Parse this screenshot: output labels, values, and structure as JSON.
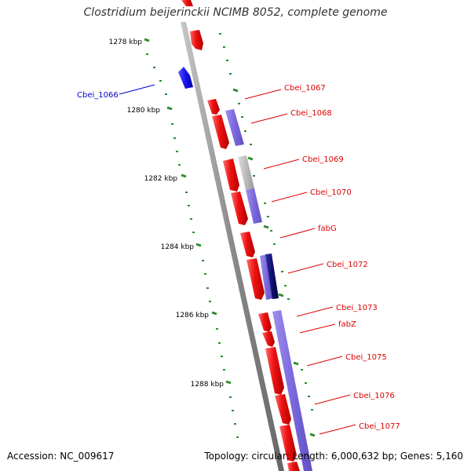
{
  "title": "Clostridium beijerinckii NCIMB 8052, complete genome",
  "accession": "Accession: NC_009617",
  "topology": "Topology: circular; Length: 6,000,632 bp; Genes: 5,160",
  "colors": {
    "cds_forward": "#ee1111",
    "cds_reverse": "#1a1aee",
    "backbone": "#8a8a8a",
    "feature_periwinkle": "#7b68dd",
    "feature_grey": "#bbbbbb",
    "feature_navy": "#101070",
    "tick": "#2e8b2e",
    "label_forward": "#dd0000",
    "label_reverse": "#0000cc"
  },
  "kbp_ticks": [
    "1278 kbp",
    "1280 kbp",
    "1282 kbp",
    "1284 kbp",
    "1286 kbp",
    "1288 kbp"
  ],
  "gene_labels": [
    {
      "text": "Cbei_1066",
      "strand": "reverse"
    },
    {
      "text": "Cbei_1067",
      "strand": "forward"
    },
    {
      "text": "Cbei_1068",
      "strand": "forward"
    },
    {
      "text": "Cbei_1069",
      "strand": "forward"
    },
    {
      "text": "Cbei_1070",
      "strand": "forward"
    },
    {
      "text": "fabG",
      "strand": "forward"
    },
    {
      "text": "Cbei_1072",
      "strand": "forward"
    },
    {
      "text": "Cbei_1073",
      "strand": "forward"
    },
    {
      "text": "fabZ",
      "strand": "forward"
    },
    {
      "text": "Cbei_1075",
      "strand": "forward"
    },
    {
      "text": "Cbei_1076",
      "strand": "forward"
    },
    {
      "text": "Cbei_1077",
      "strand": "forward"
    }
  ]
}
